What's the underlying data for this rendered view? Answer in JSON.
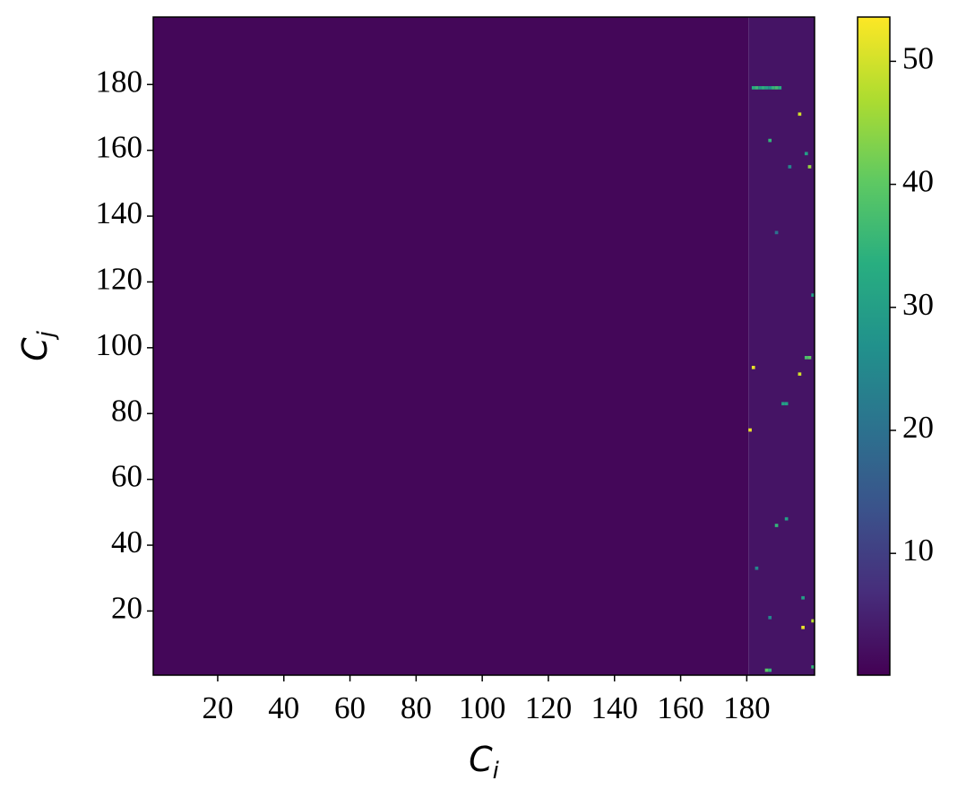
{
  "chart_data": {
    "type": "heatmap",
    "xlabel": "C",
    "xlabel_sub": "i",
    "ylabel": "C",
    "ylabel_sub": "j",
    "xlim": [
      0.5,
      200.5
    ],
    "ylim": [
      0.5,
      200.5
    ],
    "xticks": [
      20,
      40,
      60,
      80,
      100,
      120,
      140,
      160,
      180
    ],
    "yticks": [
      20,
      40,
      60,
      80,
      100,
      120,
      140,
      160,
      180
    ],
    "colormap": "viridis",
    "clim": [
      0.1,
      53.6
    ],
    "cticks": [
      10,
      20,
      30,
      40,
      50
    ],
    "regions": [
      {
        "x": [
          0.5,
          180.5
        ],
        "y": [
          0.5,
          200.5
        ],
        "value": 1
      },
      {
        "x": [
          180.5,
          200.5
        ],
        "y": [
          0.5,
          200.5
        ],
        "value": 3
      }
    ],
    "cells": [
      {
        "x": 182,
        "y": 179,
        "value": 33
      },
      {
        "x": 183,
        "y": 179,
        "value": 36
      },
      {
        "x": 184,
        "y": 179,
        "value": 30
      },
      {
        "x": 185,
        "y": 179,
        "value": 34
      },
      {
        "x": 186,
        "y": 179,
        "value": 31
      },
      {
        "x": 187,
        "y": 179,
        "value": 28
      },
      {
        "x": 188,
        "y": 179,
        "value": 35
      },
      {
        "x": 189,
        "y": 179,
        "value": 37
      },
      {
        "x": 190,
        "y": 179,
        "value": 33
      },
      {
        "x": 196,
        "y": 171,
        "value": 50
      },
      {
        "x": 199,
        "y": 155,
        "value": 45
      },
      {
        "x": 193,
        "y": 155,
        "value": 25
      },
      {
        "x": 187,
        "y": 163,
        "value": 35
      },
      {
        "x": 198,
        "y": 159,
        "value": 30
      },
      {
        "x": 189,
        "y": 135,
        "value": 20
      },
      {
        "x": 200,
        "y": 116,
        "value": 30
      },
      {
        "x": 182,
        "y": 94,
        "value": 52
      },
      {
        "x": 196,
        "y": 92,
        "value": 50
      },
      {
        "x": 199,
        "y": 97,
        "value": 40
      },
      {
        "x": 198,
        "y": 97,
        "value": 38
      },
      {
        "x": 191,
        "y": 83,
        "value": 30
      },
      {
        "x": 192,
        "y": 83,
        "value": 30
      },
      {
        "x": 181,
        "y": 75,
        "value": 52
      },
      {
        "x": 189,
        "y": 46,
        "value": 35
      },
      {
        "x": 192,
        "y": 48,
        "value": 30
      },
      {
        "x": 183,
        "y": 33,
        "value": 25
      },
      {
        "x": 197,
        "y": 24,
        "value": 30
      },
      {
        "x": 187,
        "y": 18,
        "value": 25
      },
      {
        "x": 197,
        "y": 15,
        "value": 52
      },
      {
        "x": 200,
        "y": 17,
        "value": 48
      },
      {
        "x": 186,
        "y": 2,
        "value": 40
      },
      {
        "x": 187,
        "y": 2,
        "value": 35
      },
      {
        "x": 200,
        "y": 3,
        "value": 35
      }
    ]
  }
}
